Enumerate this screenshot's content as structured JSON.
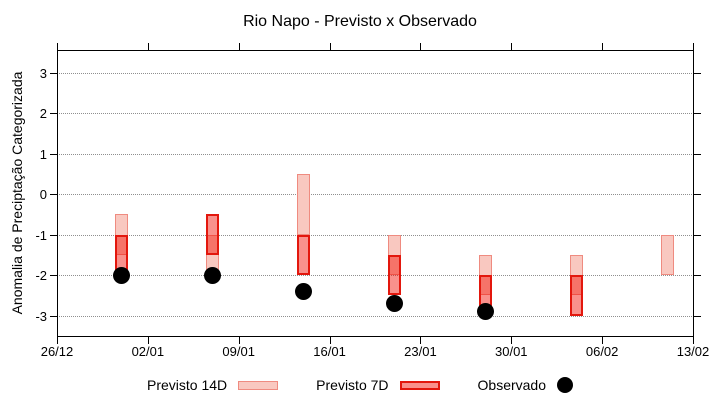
{
  "chart_data": {
    "type": "bar",
    "subtype": "overlapping-range-bars-with-observations",
    "title": "Rio Napo - Previsto x Observado",
    "ylabel": "Anomalia de Preciptação Categorizada",
    "xlabel": "",
    "ylim": [
      -3.55,
      3.55
    ],
    "yticks": [
      3,
      2,
      1,
      0,
      -1,
      -2,
      -3
    ],
    "grid": "dotted horizontal gridlines at integer y values",
    "x_axis": {
      "start_label": "26/12",
      "end_label": "13/02",
      "span_days": 49,
      "ticks": [
        {
          "label": "26/12",
          "day": 0
        },
        {
          "label": "02/01",
          "day": 7
        },
        {
          "label": "09/01",
          "day": 14
        },
        {
          "label": "16/01",
          "day": 21
        },
        {
          "label": "23/01",
          "day": 28
        },
        {
          "label": "30/01",
          "day": 35
        },
        {
          "label": "06/02",
          "day": 42
        },
        {
          "label": "13/02",
          "day": 49
        }
      ]
    },
    "bars": [
      {
        "day": 5,
        "previsto_14d": [
          -0.5,
          -1.5
        ],
        "previsto_7d": [
          -1.0,
          -2.0
        ],
        "observado": -2.0
      },
      {
        "day": 12,
        "previsto_14d": [
          -1.0,
          -2.0
        ],
        "previsto_7d": [
          -0.5,
          -1.5
        ],
        "observado": -2.0
      },
      {
        "day": 19,
        "previsto_14d": [
          0.5,
          -1.0
        ],
        "previsto_7d": [
          -1.0,
          -2.0
        ],
        "observado": -2.4
      },
      {
        "day": 26,
        "previsto_14d": [
          -1.0,
          -2.0
        ],
        "previsto_7d": [
          -1.5,
          -2.5
        ],
        "observado": -2.7
      },
      {
        "day": 33,
        "previsto_14d": [
          -1.5,
          -2.5
        ],
        "previsto_7d": [
          -2.0,
          -3.0
        ],
        "observado": -2.9
      },
      {
        "day": 40,
        "previsto_14d": [
          -1.5,
          -2.5
        ],
        "previsto_7d": [
          -2.0,
          -3.0
        ],
        "observado": null
      },
      {
        "day": 47,
        "previsto_14d": [
          -1.0,
          -2.0
        ],
        "previsto_7d": null,
        "observado": null
      }
    ],
    "legend": [
      {
        "label": "Previsto 14D",
        "swatch": "light-pink-box"
      },
      {
        "label": "Previsto 7D",
        "swatch": "red-box"
      },
      {
        "label": "Observado",
        "swatch": "black-dot"
      }
    ],
    "legend_position": "below plot, centered",
    "colors": {
      "previsto_14d_fill": "#f9c8c0",
      "previsto_14d_border": "#ef8b80",
      "previsto_7d_fill": "rgba(242,10,0,0.45)",
      "previsto_7d_border": "#e3170d",
      "observado": "#000000",
      "grid": "#8f8f8f",
      "frame": "#000000"
    }
  }
}
